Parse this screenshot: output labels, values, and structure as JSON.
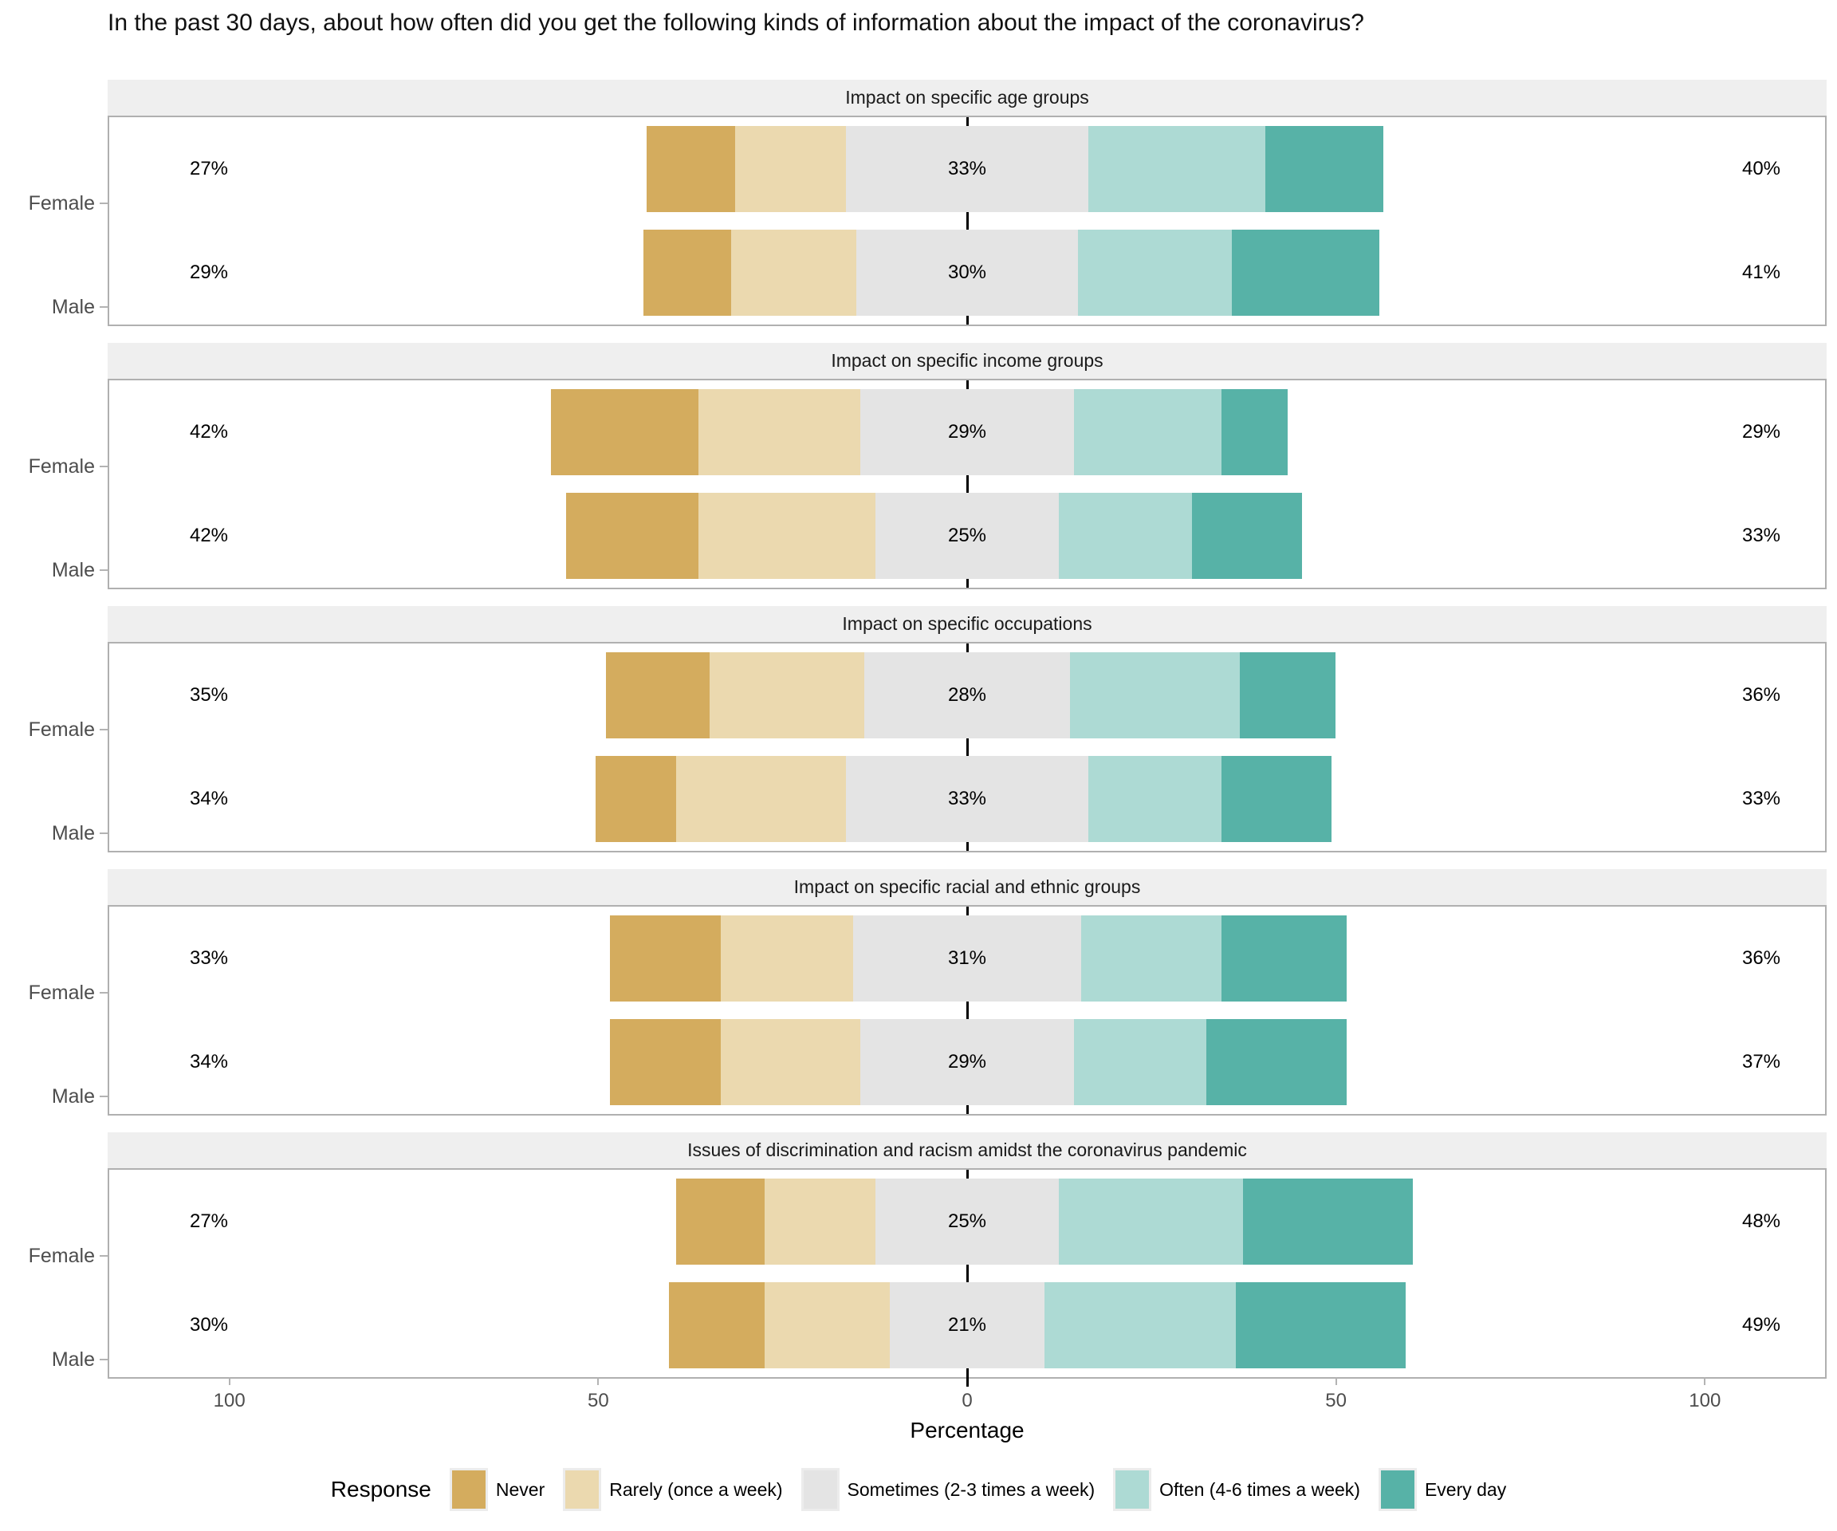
{
  "title": "In the past 30 days, about how often did you get the following kinds of information about the impact of the coronavirus?",
  "axis": {
    "xlabel": "Percentage",
    "ticks": [
      "100",
      "50",
      "0",
      "50",
      "100"
    ]
  },
  "legend": {
    "title": "Response",
    "items": [
      {
        "label": "Never",
        "color": "#d4ac5e"
      },
      {
        "label": "Rarely (once a week)",
        "color": "#ebd9af"
      },
      {
        "label": "Sometimes (2-3 times a week)",
        "color": "#e4e4e4"
      },
      {
        "label": "Often (4-6 times a week)",
        "color": "#addad4"
      },
      {
        "label": "Every day",
        "color": "#57b2a7"
      }
    ]
  },
  "chart_data": {
    "type": "bar",
    "subtype": "diverging-stacked-likert",
    "orientation": "horizontal",
    "xlim": [
      -116.5,
      116.5
    ],
    "tick_values": [
      -100,
      -50,
      0,
      50,
      100
    ],
    "response_levels": [
      "Never",
      "Rarely (once a week)",
      "Sometimes (2-3 times a week)",
      "Often (4-6 times a week)",
      "Every day"
    ],
    "colors": [
      "#d4ac5e",
      "#ebd9af",
      "#e4e4e4",
      "#addad4",
      "#57b2a7"
    ],
    "note": "values = [Never, Rarely, Sometimes, Often, Every day] percentages; Sometimes segment is centered on 0; labels show Never+Rarely, Sometimes, Often+Every day",
    "panels": [
      {
        "title": "Impact on specific age groups",
        "rows": [
          {
            "group": "Female",
            "values": [
              12,
              15,
              33,
              24,
              16
            ],
            "labels": {
              "left": "27%",
              "center": "33%",
              "right": "40%"
            }
          },
          {
            "group": "Male",
            "values": [
              12,
              17,
              30,
              21,
              20
            ],
            "labels": {
              "left": "29%",
              "center": "30%",
              "right": "41%"
            }
          }
        ]
      },
      {
        "title": "Impact on specific income groups",
        "rows": [
          {
            "group": "Female",
            "values": [
              20,
              22,
              29,
              20,
              9
            ],
            "labels": {
              "left": "42%",
              "center": "29%",
              "right": "29%"
            }
          },
          {
            "group": "Male",
            "values": [
              18,
              24,
              25,
              18,
              15
            ],
            "labels": {
              "left": "42%",
              "center": "25%",
              "right": "33%"
            }
          }
        ]
      },
      {
        "title": "Impact on specific occupations",
        "rows": [
          {
            "group": "Female",
            "values": [
              14,
              21,
              28,
              23,
              13
            ],
            "labels": {
              "left": "35%",
              "center": "28%",
              "right": "36%"
            }
          },
          {
            "group": "Male",
            "values": [
              11,
              23,
              33,
              18,
              15
            ],
            "labels": {
              "left": "34%",
              "center": "33%",
              "right": "33%"
            }
          }
        ]
      },
      {
        "title": "Impact on specific racial and ethnic groups",
        "rows": [
          {
            "group": "Female",
            "values": [
              15,
              18,
              31,
              19,
              17
            ],
            "labels": {
              "left": "33%",
              "center": "31%",
              "right": "36%"
            }
          },
          {
            "group": "Male",
            "values": [
              15,
              19,
              29,
              18,
              19
            ],
            "labels": {
              "left": "34%",
              "center": "29%",
              "right": "37%"
            }
          }
        ]
      },
      {
        "title": "Issues of discrimination and racism amidst the coronavirus pandemic",
        "rows": [
          {
            "group": "Female",
            "values": [
              12,
              15,
              25,
              25,
              23
            ],
            "labels": {
              "left": "27%",
              "center": "25%",
              "right": "48%"
            }
          },
          {
            "group": "Male",
            "values": [
              13,
              17,
              21,
              26,
              23
            ],
            "labels": {
              "left": "30%",
              "center": "21%",
              "right": "49%"
            }
          }
        ]
      }
    ]
  }
}
